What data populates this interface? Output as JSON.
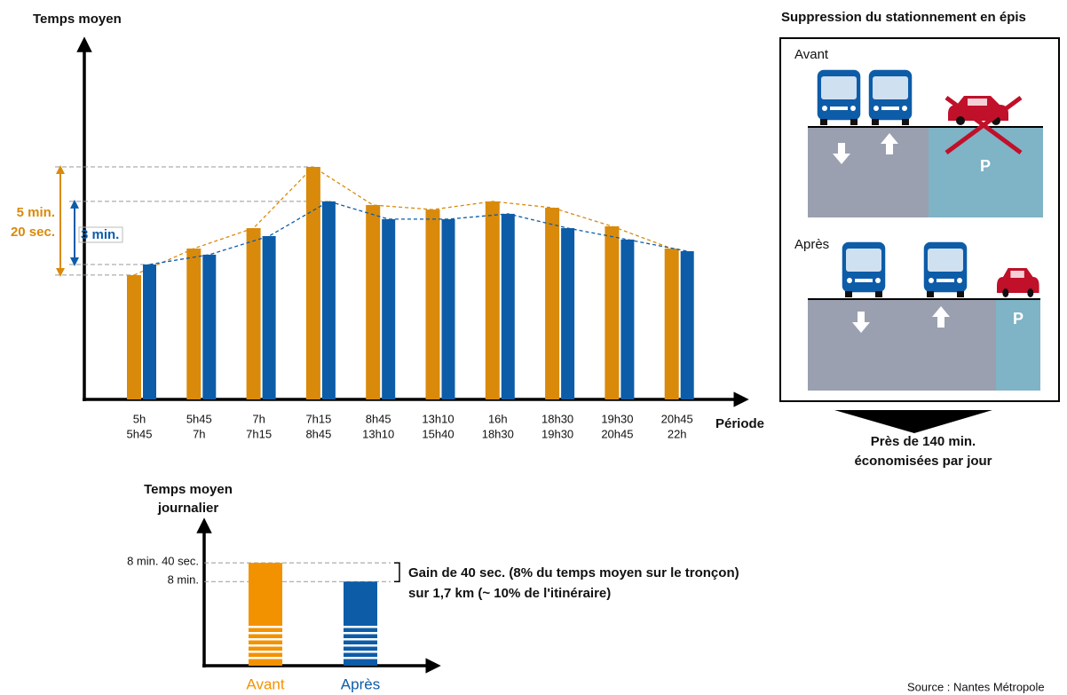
{
  "chart_data": [
    {
      "type": "bar",
      "y_label": "Temps moyen",
      "x_label": "Période",
      "categories": [
        [
          "5h",
          "5h45"
        ],
        [
          "5h45",
          "7h"
        ],
        [
          "7h",
          "7h15"
        ],
        [
          "7h15",
          "8h45"
        ],
        [
          "8h45",
          "13h10"
        ],
        [
          "13h10",
          "15h40"
        ],
        [
          "16h",
          "18h30"
        ],
        [
          "18h30",
          "19h30"
        ],
        [
          "19h30",
          "20h45"
        ],
        [
          "20h45",
          "22h"
        ]
      ],
      "series": [
        {
          "color": "#d98a0b",
          "values": [
            6.09,
            7.39,
            8.39,
            11.39,
            9.52,
            9.3,
            9.7,
            9.39,
            8.48,
            7.39
          ]
        },
        {
          "color": "#0d5ca8",
          "values": [
            6.61,
            7.09,
            8.0,
            9.7,
            8.83,
            8.83,
            9.09,
            8.39,
            7.83,
            7.26
          ]
        }
      ],
      "ylim": [
        0,
        17
      ],
      "annotations": [
        {
          "text": [
            "5 min.",
            "20 sec."
          ],
          "color": "#d98a0b"
        },
        {
          "text": "3 min.",
          "color": "#0d5ca8"
        }
      ]
    },
    {
      "type": "bar",
      "y_label": [
        "Temps moyen",
        "journalier"
      ],
      "categories": [
        "Avant",
        "Après"
      ],
      "colors": [
        "#f39200",
        "#0d5ca8"
      ],
      "values": [
        8.667,
        8
      ],
      "ylim": [
        5,
        10
      ],
      "yticks": [
        {
          "value": 8.667,
          "label": "8 min. 40 sec."
        },
        {
          "value": 8,
          "label": "8 min."
        }
      ],
      "annotation": [
        "Gain de 40 sec. (8% du temps moyen sur le tronçon)",
        "sur 1,7 km (~ 10% de l'itinéraire)"
      ]
    }
  ],
  "diagram": {
    "title": "Suppression du stationnement en épis",
    "panels": [
      {
        "label": "Avant",
        "parking": "P"
      },
      {
        "label": "Après",
        "parking": "P"
      }
    ],
    "note": [
      "Près de 140 min.",
      "économisées par jour"
    ]
  },
  "source": "Source : Nantes Métropole"
}
